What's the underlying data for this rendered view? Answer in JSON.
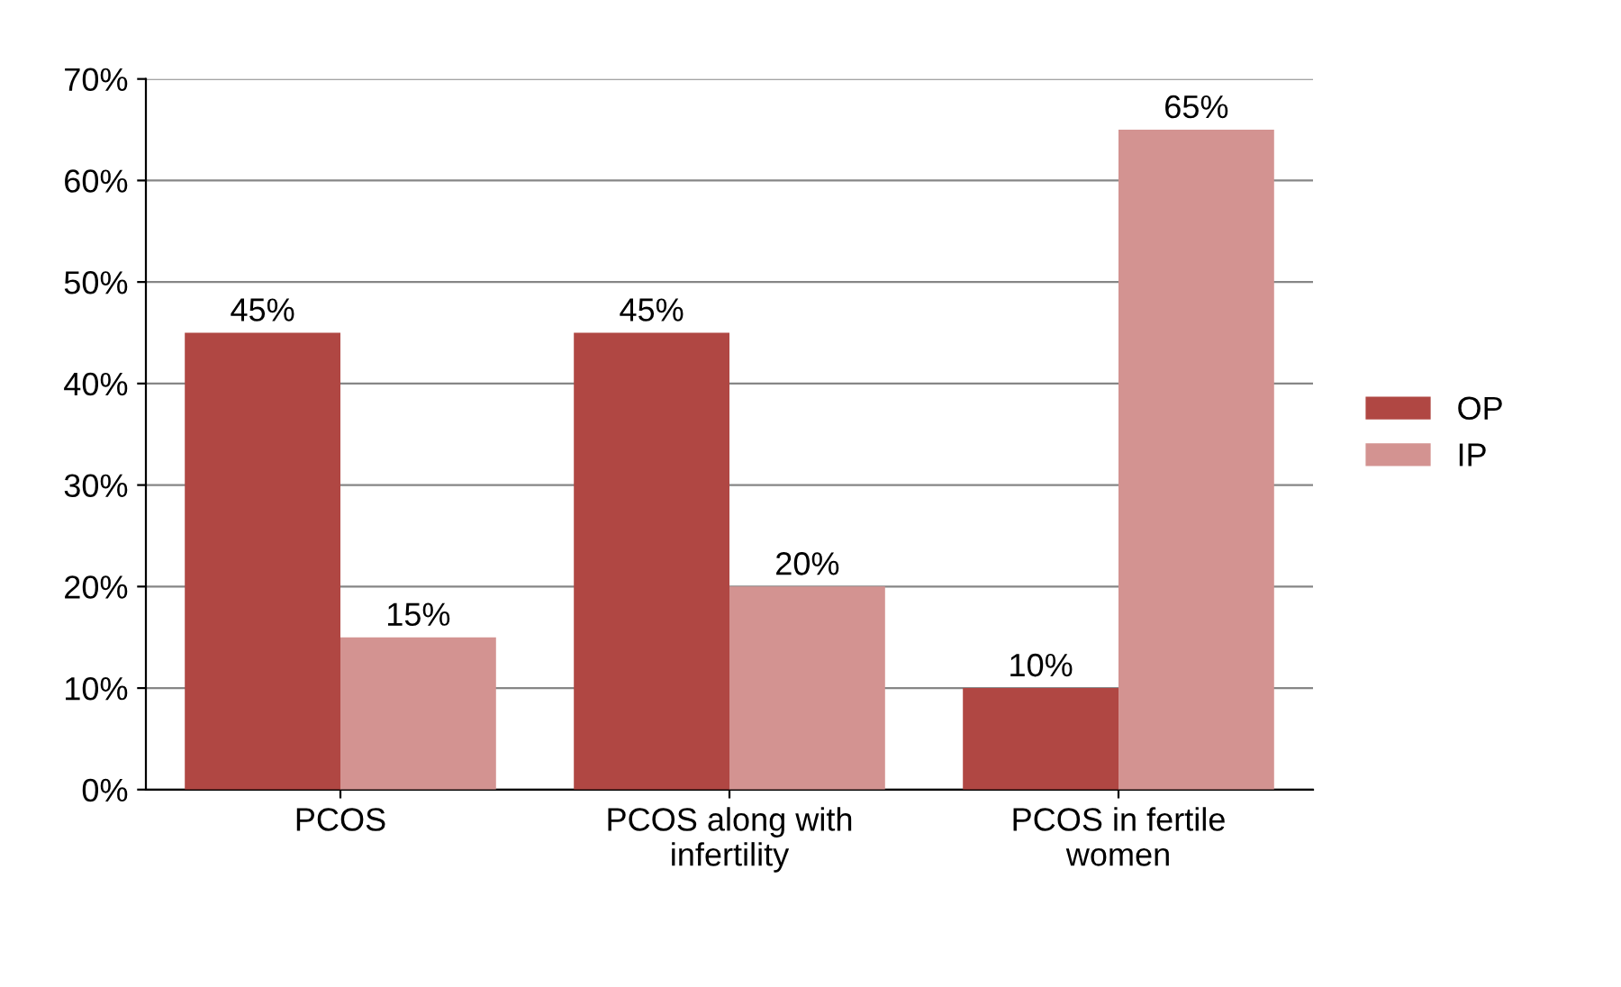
{
  "chart_data": {
    "type": "bar",
    "categories": [
      "PCOS",
      "PCOS along with\ninfertility",
      "PCOS in fertile\nwomen"
    ],
    "series": [
      {
        "name": "OP",
        "color": "#b04743",
        "values": [
          45,
          45,
          10
        ],
        "value_labels": [
          "45%",
          "45%",
          "10%"
        ]
      },
      {
        "name": "IP",
        "color": "#d39391",
        "values": [
          15,
          20,
          65
        ],
        "value_labels": [
          "15%",
          "20%",
          "65%"
        ]
      }
    ],
    "ylim": [
      0,
      70
    ],
    "yticks": [
      {
        "value": 0,
        "label": "0%"
      },
      {
        "value": 10,
        "label": "10%"
      },
      {
        "value": 20,
        "label": "20%"
      },
      {
        "value": 30,
        "label": "30%"
      },
      {
        "value": 40,
        "label": "40%"
      },
      {
        "value": 50,
        "label": "50%"
      },
      {
        "value": 60,
        "label": "60%"
      },
      {
        "value": 70,
        "label": "70%"
      }
    ],
    "grid": "y",
    "legend": "right"
  }
}
